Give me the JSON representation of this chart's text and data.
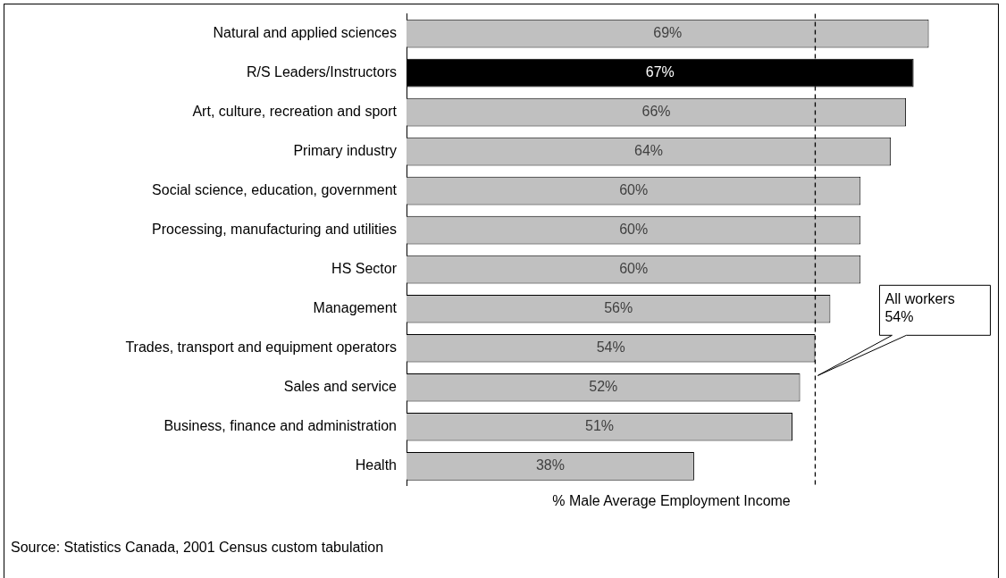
{
  "chart_data": {
    "type": "bar",
    "orientation": "horizontal",
    "categories": [
      "Natural and applied sciences",
      "R/S Leaders/Instructors",
      "Art, culture, recreation and sport",
      "Primary industry",
      "Social science, education, government",
      "Processing, manufacturing and utilities",
      "HS Sector",
      "Management",
      "Trades, transport and equipment operators",
      "Sales and service",
      "Business, finance and administration",
      "Health"
    ],
    "values": [
      69,
      67,
      66,
      64,
      60,
      60,
      60,
      56,
      54,
      52,
      51,
      38
    ],
    "colors": [
      "#c0c0c0",
      "#000000",
      "#c0c0c0",
      "#c0c0c0",
      "#c0c0c0",
      "#c0c0c0",
      "#c0c0c0",
      "#c0c0c0",
      "#c0c0c0",
      "#c0c0c0",
      "#c0c0c0",
      "#c0c0c0"
    ],
    "value_labels": [
      "69%",
      "67%",
      "66%",
      "64%",
      "60%",
      "60%",
      "60%",
      "56%",
      "54%",
      "52%",
      "51%",
      "38%"
    ],
    "xlabel": "% Male Average Employment Income",
    "tick_labels": "y",
    "grid": false,
    "legend": false,
    "ref_lines": [
      {
        "axis": "x",
        "value": 54,
        "label": "All workers 54%",
        "line_style": "dashed",
        "color": "#000000"
      }
    ],
    "annotations": [
      "Source: Statistics Canada, 2001 Census custom tabulation"
    ]
  }
}
